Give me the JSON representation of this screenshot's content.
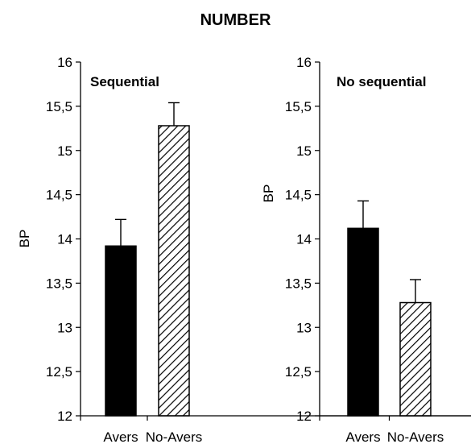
{
  "title": "NUMBER",
  "colors": {
    "bar_fill_solid": "#000000",
    "hatch": "#000000",
    "axis": "#000000"
  },
  "chart_data": [
    {
      "type": "bar",
      "title": "Sequential",
      "ylabel": "BP",
      "xlabel": "",
      "categories": [
        "Avers",
        "No-Avers"
      ],
      "values": [
        13.92,
        15.28
      ],
      "errors": [
        0.3,
        0.26
      ],
      "fills": [
        "solid",
        "hatched"
      ],
      "ylim": [
        12,
        16
      ],
      "yticks": [
        "12",
        "12,5",
        "13",
        "13,5",
        "14",
        "14,5",
        "15",
        "15,5",
        "16"
      ],
      "grid": false
    },
    {
      "type": "bar",
      "title": "No sequential",
      "ylabel": "BP",
      "xlabel": "",
      "categories": [
        "Avers",
        "No-Avers"
      ],
      "values": [
        14.12,
        13.28
      ],
      "errors": [
        0.31,
        0.26
      ],
      "fills": [
        "solid",
        "hatched"
      ],
      "ylim": [
        12,
        16
      ],
      "yticks": [
        "12",
        "12,5",
        "13",
        "13,5",
        "14",
        "14,5",
        "15",
        "15,5",
        "16"
      ],
      "grid": false
    }
  ]
}
